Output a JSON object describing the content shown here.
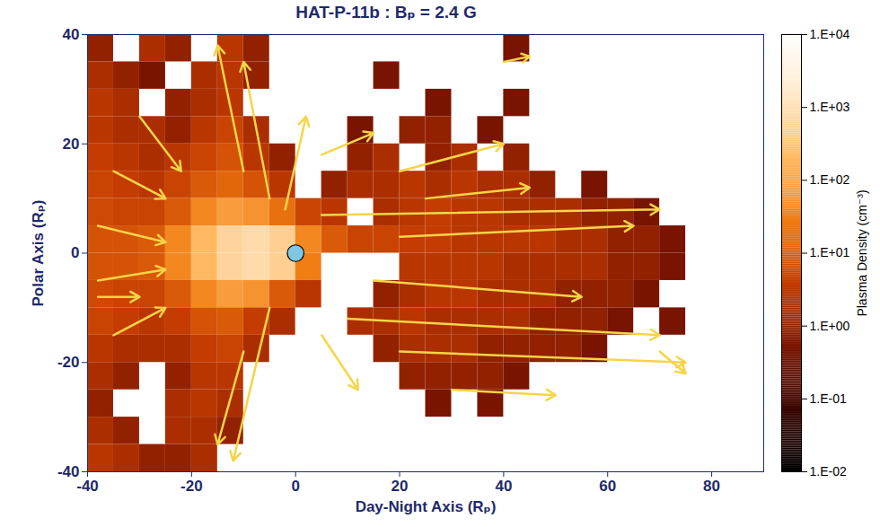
{
  "chart_data": {
    "type": "heatmap",
    "title": "HAT-P-11b : Bₚ = 2.4 G",
    "x_label": "Day-Night Axis (Rₚ)",
    "y_label": "Polar Axis (Rₚ)",
    "xlim": [
      -40,
      90
    ],
    "ylim": [
      -40,
      40
    ],
    "xticks": [
      -40,
      -20,
      0,
      20,
      40,
      60,
      80
    ],
    "yticks": [
      -40,
      -20,
      0,
      20,
      40
    ],
    "xbins": [
      -40,
      -35,
      -30,
      -25,
      -20,
      -15,
      -10,
      -5,
      0,
      5,
      10,
      15,
      20,
      25,
      30,
      35,
      40,
      45,
      50,
      55,
      60,
      65,
      70,
      75,
      80,
      85,
      90
    ],
    "ybins": [
      40,
      35,
      30,
      25,
      20,
      15,
      10,
      5,
      0,
      -5,
      -10,
      -15,
      -20,
      -25,
      -30,
      -35,
      -40
    ],
    "cells": [
      [
        1,
        null,
        2,
        1,
        null,
        3,
        1,
        null,
        null,
        null,
        null,
        null,
        null,
        null,
        null,
        null,
        0.5,
        null,
        null,
        null,
        null,
        null,
        null,
        null,
        null,
        null
      ],
      [
        2,
        1,
        0.5,
        null,
        2,
        3,
        1,
        null,
        null,
        null,
        null,
        0.5,
        null,
        null,
        null,
        null,
        null,
        null,
        null,
        null,
        null,
        null,
        null,
        null,
        null,
        null
      ],
      [
        3,
        2,
        null,
        1,
        2,
        3,
        null,
        null,
        null,
        null,
        null,
        null,
        null,
        0.5,
        null,
        null,
        0.5,
        null,
        null,
        null,
        null,
        null,
        null,
        null,
        null,
        null
      ],
      [
        3,
        2,
        2,
        1,
        3,
        5,
        2,
        null,
        null,
        null,
        0.5,
        null,
        1,
        1,
        null,
        0.5,
        null,
        null,
        null,
        null,
        null,
        null,
        null,
        null,
        null,
        null
      ],
      [
        4,
        3,
        2,
        3,
        5,
        8,
        3,
        1,
        null,
        null,
        1,
        2,
        null,
        1,
        2,
        null,
        1,
        null,
        null,
        null,
        null,
        null,
        null,
        null,
        null,
        null
      ],
      [
        5,
        4,
        3,
        5,
        10,
        15,
        8,
        3,
        null,
        1,
        2,
        2,
        3,
        2,
        3,
        2,
        2,
        1,
        null,
        0.5,
        null,
        null,
        null,
        null,
        null,
        null
      ],
      [
        6,
        5,
        5,
        10,
        40,
        80,
        60,
        20,
        5,
        3,
        null,
        2,
        3,
        4,
        3,
        3,
        2,
        2,
        2,
        1,
        1,
        0.5,
        null,
        null,
        null,
        null
      ],
      [
        8,
        8,
        10,
        40,
        200,
        600,
        800,
        500,
        40,
        10,
        5,
        5,
        4,
        4,
        3,
        3,
        3,
        3,
        2,
        2,
        1,
        1,
        0.5,
        null,
        null,
        null
      ],
      [
        8,
        8,
        10,
        40,
        200,
        600,
        800,
        500,
        30,
        null,
        null,
        null,
        3,
        3,
        3,
        3,
        2,
        2,
        2,
        2,
        1,
        1,
        0.5,
        null,
        null,
        null
      ],
      [
        6,
        5,
        5,
        10,
        40,
        80,
        60,
        10,
        3,
        null,
        null,
        1,
        2,
        3,
        3,
        2,
        2,
        2,
        1,
        1,
        1,
        0.5,
        null,
        null,
        null,
        null
      ],
      [
        5,
        4,
        3,
        4,
        8,
        10,
        4,
        2,
        null,
        null,
        2,
        2,
        3,
        2,
        2,
        2,
        2,
        1,
        1,
        1,
        0.5,
        null,
        0.5,
        null,
        null,
        null
      ],
      [
        3,
        2,
        2,
        2,
        4,
        5,
        2,
        null,
        null,
        null,
        null,
        1,
        2,
        2,
        2,
        1,
        1,
        1,
        1,
        0.5,
        null,
        null,
        null,
        null,
        null,
        null
      ],
      [
        2,
        1,
        null,
        1,
        3,
        3,
        null,
        null,
        null,
        null,
        null,
        null,
        1,
        1,
        1,
        1,
        0.5,
        null,
        null,
        null,
        null,
        null,
        null,
        null,
        null,
        null
      ],
      [
        1,
        null,
        null,
        2,
        3,
        2,
        null,
        null,
        null,
        null,
        null,
        null,
        null,
        0.5,
        null,
        0.5,
        null,
        null,
        null,
        null,
        null,
        null,
        null,
        null,
        null,
        null
      ],
      [
        2,
        1,
        null,
        2,
        2,
        1,
        null,
        null,
        null,
        null,
        null,
        null,
        null,
        null,
        null,
        null,
        null,
        null,
        null,
        null,
        null,
        null,
        null,
        null,
        null,
        null
      ],
      [
        3,
        2,
        1,
        1,
        2,
        null,
        null,
        null,
        null,
        null,
        null,
        null,
        null,
        null,
        null,
        null,
        null,
        null,
        null,
        null,
        null,
        null,
        null,
        null,
        null,
        null
      ]
    ],
    "colorbar": {
      "label": "Plasma Density (cm⁻³)",
      "log": true,
      "range": [
        0.01,
        10000
      ],
      "ticks": [
        {
          "value": 0.01,
          "label": "1.E-02"
        },
        {
          "value": 0.1,
          "label": "1.E-01"
        },
        {
          "value": 1,
          "label": "1.E+00"
        },
        {
          "value": 10,
          "label": "1.E+01"
        },
        {
          "value": 100,
          "label": "1.E+02"
        },
        {
          "value": 1000,
          "label": "1.E+03"
        },
        {
          "value": 10000,
          "label": "1.E+04"
        }
      ],
      "colors": [
        "#000000",
        "#3a0600",
        "#7a1400",
        "#c23a00",
        "#f07a10",
        "#ffb860",
        "#ffe8c8",
        "#ffffff"
      ]
    },
    "planet": {
      "x": 0,
      "y": 0,
      "radius": 1.6,
      "color": "#7ec8e3"
    },
    "vectors": {
      "color": "#f5d547",
      "segments": [
        {
          "x1": 5,
          "y1": 7,
          "x2": 70,
          "y2": 8
        },
        {
          "x1": 20,
          "y1": 3,
          "x2": 65,
          "y2": 5
        },
        {
          "x1": 15,
          "y1": -5,
          "x2": 55,
          "y2": -8
        },
        {
          "x1": 10,
          "y1": -12,
          "x2": 70,
          "y2": -15
        },
        {
          "x1": 20,
          "y1": -18,
          "x2": 75,
          "y2": -20
        },
        {
          "x1": 30,
          "y1": -25,
          "x2": 50,
          "y2": -26
        },
        {
          "x1": 25,
          "y1": 10,
          "x2": 45,
          "y2": 12
        },
        {
          "x1": 20,
          "y1": 15,
          "x2": 40,
          "y2": 20
        },
        {
          "x1": 40,
          "y1": 35,
          "x2": 45,
          "y2": 36
        },
        {
          "x1": 70,
          "y1": -18,
          "x2": 75,
          "y2": -22
        },
        {
          "x1": -5,
          "y1": 10,
          "x2": -10,
          "y2": 35
        },
        {
          "x1": -10,
          "y1": 15,
          "x2": -15,
          "y2": 38
        },
        {
          "x1": -2,
          "y1": 8,
          "x2": 2,
          "y2": 25
        },
        {
          "x1": 5,
          "y1": 18,
          "x2": 15,
          "y2": 22
        },
        {
          "x1": -5,
          "y1": -10,
          "x2": -12,
          "y2": -38
        },
        {
          "x1": -10,
          "y1": -18,
          "x2": -15,
          "y2": -35
        },
        {
          "x1": 5,
          "y1": -15,
          "x2": 12,
          "y2": -25
        },
        {
          "x1": -38,
          "y1": 5,
          "x2": -25,
          "y2": 2
        },
        {
          "x1": -38,
          "y1": -5,
          "x2": -25,
          "y2": -3
        },
        {
          "x1": -35,
          "y1": 15,
          "x2": -25,
          "y2": 10
        },
        {
          "x1": -35,
          "y1": -15,
          "x2": -25,
          "y2": -10
        },
        {
          "x1": -30,
          "y1": 25,
          "x2": -22,
          "y2": 15
        },
        {
          "x1": -38,
          "y1": -8,
          "x2": -30,
          "y2": -8
        }
      ]
    }
  }
}
